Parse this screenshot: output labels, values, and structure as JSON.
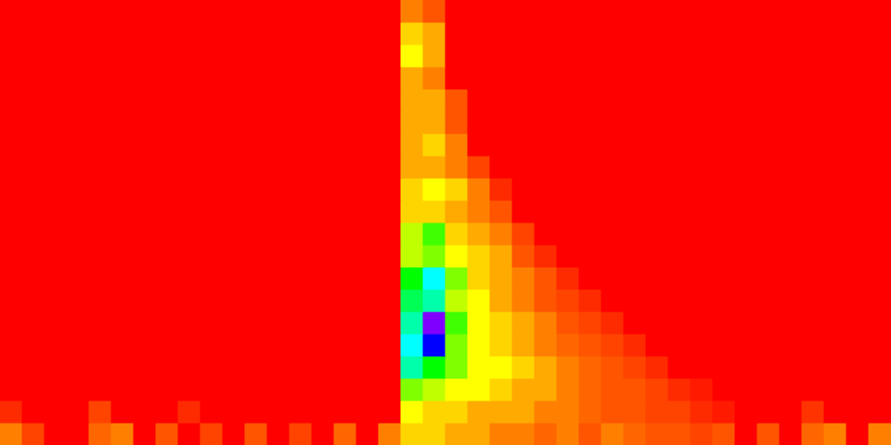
{
  "chart_data": {
    "type": "heatmap",
    "tick_labels": false,
    "xlim": [
      0,
      40
    ],
    "ylim": [
      0,
      20
    ],
    "color_range": [
      0,
      10
    ],
    "cells": [
      [
        1.5,
        0.8,
        0,
        0,
        1.2,
        1.5,
        0,
        1,
        0,
        0.8,
        0,
        1,
        0,
        0.8,
        0,
        1.2,
        0,
        1.5,
        2.5,
        2.5,
        2,
        2,
        1.5,
        1.5,
        1.2,
        1.5,
        1,
        1.5,
        1.2,
        1,
        1,
        0.8,
        1,
        0,
        1,
        0,
        1.2,
        1.5,
        0,
        1.5
      ],
      [
        0.5,
        0,
        0,
        0,
        0.8,
        0,
        0,
        0,
        0.5,
        0,
        0,
        0,
        0,
        0,
        0,
        0,
        0,
        0,
        3,
        2.5,
        2.5,
        2,
        2,
        2,
        1.5,
        1.5,
        1.2,
        1,
        1,
        0.8,
        0.8,
        0.5,
        0.3,
        0,
        0,
        0,
        0.6,
        0,
        0,
        0
      ],
      [
        0,
        0,
        0,
        0,
        0,
        0,
        0,
        0,
        0,
        0,
        0,
        0,
        0,
        0,
        0,
        0,
        0,
        0,
        4,
        3.5,
        3,
        3,
        2.5,
        2,
        2,
        1.5,
        1.2,
        1,
        1,
        0.8,
        0.5,
        0.3,
        0,
        0,
        0,
        0,
        0,
        0,
        0,
        0
      ],
      [
        0,
        0,
        0,
        0,
        0,
        0,
        0,
        0,
        0,
        0,
        0,
        0,
        0,
        0,
        0,
        0,
        0,
        0,
        6,
        5,
        4,
        3,
        3,
        2.5,
        2,
        1.5,
        1.2,
        1,
        0.8,
        0.5,
        0,
        0,
        0,
        0,
        0,
        0,
        0,
        0,
        0,
        0
      ],
      [
        0,
        0,
        0,
        0,
        0,
        0,
        0,
        0,
        0,
        0,
        0,
        0,
        0,
        0,
        0,
        0,
        0,
        0,
        6.5,
        8,
        4,
        3,
        2.5,
        2,
        1.5,
        1.2,
        1,
        0.8,
        0.5,
        0,
        0,
        0,
        0,
        0,
        0,
        0,
        0,
        0,
        0,
        0
      ],
      [
        0,
        0,
        0,
        0,
        0,
        0,
        0,
        0,
        0,
        0,
        0,
        0,
        0,
        0,
        0,
        0,
        0,
        0,
        6,
        9,
        4.5,
        3,
        2.5,
        2,
        1.5,
        1,
        0.8,
        0.5,
        0,
        0,
        0,
        0,
        0,
        0,
        0,
        0,
        0,
        0,
        0,
        0
      ],
      [
        0,
        0,
        0,
        0,
        0,
        0,
        0,
        0,
        0,
        0,
        0,
        0,
        0,
        0,
        0,
        0,
        0,
        0,
        5.5,
        6,
        3.5,
        3,
        2,
        1.5,
        1,
        0.8,
        0.5,
        0,
        0,
        0,
        0,
        0,
        0,
        0,
        0,
        0,
        0,
        0,
        0,
        0
      ],
      [
        0,
        0,
        0,
        0,
        0,
        0,
        0,
        0,
        0,
        0,
        0,
        0,
        0,
        0,
        0,
        0,
        0,
        0,
        5,
        6.5,
        4,
        2.5,
        2,
        1.5,
        1,
        0.5,
        0,
        0,
        0,
        0,
        0,
        0,
        0,
        0,
        0,
        0,
        0,
        0,
        0,
        0
      ],
      [
        0,
        0,
        0,
        0,
        0,
        0,
        0,
        0,
        0,
        0,
        0,
        0,
        0,
        0,
        0,
        0,
        0,
        0,
        3.5,
        4,
        3,
        2.5,
        2,
        1,
        0.5,
        0,
        0,
        0,
        0,
        0,
        0,
        0,
        0,
        0,
        0,
        0,
        0,
        0,
        0,
        0
      ],
      [
        0,
        0,
        0,
        0,
        0,
        0,
        0,
        0,
        0,
        0,
        0,
        0,
        0,
        0,
        0,
        0,
        0,
        0,
        3.5,
        4.5,
        2.5,
        2,
        1.5,
        0.8,
        0,
        0,
        0,
        0,
        0,
        0,
        0,
        0,
        0,
        0,
        0,
        0,
        0,
        0,
        0,
        0
      ],
      [
        0,
        0,
        0,
        0,
        0,
        0,
        0,
        0,
        0,
        0,
        0,
        0,
        0,
        0,
        0,
        0,
        0,
        0,
        2.5,
        2.5,
        2,
        1.5,
        1,
        0,
        0,
        0,
        0,
        0,
        0,
        0,
        0,
        0,
        0,
        0,
        0,
        0,
        0,
        0,
        0,
        0
      ],
      [
        0,
        0,
        0,
        0,
        0,
        0,
        0,
        0,
        0,
        0,
        0,
        0,
        0,
        0,
        0,
        0,
        0,
        0,
        2.5,
        3,
        2.5,
        1.5,
        0.5,
        0,
        0,
        0,
        0,
        0,
        0,
        0,
        0,
        0,
        0,
        0,
        0,
        0,
        0,
        0,
        0,
        0
      ],
      [
        0,
        0,
        0,
        0,
        0,
        0,
        0,
        0,
        0,
        0,
        0,
        0,
        0,
        0,
        0,
        0,
        0,
        0,
        2,
        2,
        1.5,
        0.8,
        0,
        0,
        0,
        0,
        0,
        0,
        0,
        0,
        0,
        0,
        0,
        0,
        0,
        0,
        0,
        0,
        0,
        0
      ],
      [
        0,
        0,
        0,
        0,
        0,
        0,
        0,
        0,
        0,
        0,
        0,
        0,
        0,
        0,
        0,
        0,
        0,
        0,
        2,
        2.5,
        1.5,
        0,
        0,
        0,
        0,
        0,
        0,
        0,
        0,
        0,
        0,
        0,
        0,
        0,
        0,
        0,
        0,
        0,
        0,
        0
      ],
      [
        0,
        0,
        0,
        0,
        0,
        0,
        0,
        0,
        0,
        0,
        0,
        0,
        0,
        0,
        0,
        0,
        0,
        0,
        2,
        2,
        1,
        0,
        0,
        0,
        0,
        0,
        0,
        0,
        0,
        0,
        0,
        0,
        0,
        0,
        0,
        0,
        0,
        0,
        0,
        0
      ],
      [
        0,
        0,
        0,
        0,
        0,
        0,
        0,
        0,
        0,
        0,
        0,
        0,
        0,
        0,
        0,
        0,
        0,
        0,
        2,
        2,
        1,
        0,
        0,
        0,
        0,
        0,
        0,
        0,
        0,
        0,
        0,
        0,
        0,
        0,
        0,
        0,
        0,
        0,
        0,
        0
      ],
      [
        0,
        0,
        0,
        0,
        0,
        0,
        0,
        0,
        0,
        0,
        0,
        0,
        0,
        0,
        0,
        0,
        0,
        0,
        2,
        1.5,
        0,
        0,
        0,
        0,
        0,
        0,
        0,
        0,
        0,
        0,
        0,
        0,
        0,
        0,
        0,
        0,
        0,
        0,
        0,
        0
      ],
      [
        0,
        0,
        0,
        0,
        0,
        0,
        0,
        0,
        0,
        0,
        0,
        0,
        0,
        0,
        0,
        0,
        0,
        0,
        3,
        2,
        0,
        0,
        0,
        0,
        0,
        0,
        0,
        0,
        0,
        0,
        0,
        0,
        0,
        0,
        0,
        0,
        0,
        0,
        0,
        0
      ],
      [
        0,
        0,
        0,
        0,
        0,
        0,
        0,
        0,
        0,
        0,
        0,
        0,
        0,
        0,
        0,
        0,
        0,
        0,
        2.5,
        2,
        0,
        0,
        0,
        0,
        0,
        0,
        0,
        0,
        0,
        0,
        0,
        0,
        0,
        0,
        0,
        0,
        0,
        0,
        0,
        0
      ],
      [
        0,
        0,
        0,
        0,
        0,
        0,
        0,
        0,
        0,
        0,
        0,
        0,
        0,
        0,
        0,
        0,
        0,
        0,
        1.5,
        1,
        0,
        0,
        0,
        0,
        0,
        0,
        0,
        0,
        0,
        0,
        0,
        0,
        0,
        0,
        0,
        0,
        0,
        0,
        0,
        0
      ]
    ]
  }
}
